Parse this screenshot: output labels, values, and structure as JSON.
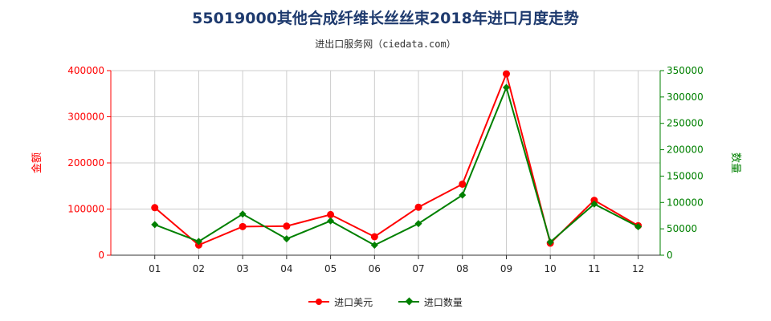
{
  "title": "55019000其他合成纤维长丝丝束2018年进口月度走势",
  "subtitle": "进出口服务网（ciedata.com）",
  "colors": {
    "left_series": "#ff0000",
    "right_series": "#008000"
  },
  "chart_data": {
    "type": "line",
    "categories": [
      "01",
      "02",
      "03",
      "04",
      "05",
      "06",
      "07",
      "08",
      "09",
      "10",
      "11",
      "12"
    ],
    "left_axis": {
      "label": "金额",
      "range": [
        0,
        400000
      ],
      "ticks": [
        0,
        100000,
        200000,
        300000,
        400000
      ],
      "tick_labels": [
        "0",
        "100000",
        "200000",
        "300000",
        "400000"
      ]
    },
    "right_axis": {
      "label": "数量",
      "range": [
        0,
        350000
      ],
      "ticks": [
        0,
        50000,
        100000,
        150000,
        200000,
        250000,
        300000,
        350000
      ],
      "tick_labels": [
        "0",
        "50000",
        "100000",
        "150000",
        "200000",
        "250000",
        "300000",
        "350000"
      ]
    },
    "grid": true,
    "legend_position": "bottom",
    "series": [
      {
        "name": "进口美元",
        "axis": "left",
        "marker": "circle",
        "values": [
          103000,
          22000,
          62000,
          63000,
          88000,
          40000,
          104000,
          154000,
          393000,
          26000,
          119000,
          64000
        ]
      },
      {
        "name": "进口数量",
        "axis": "right",
        "marker": "diamond",
        "values": [
          58000,
          26000,
          78000,
          31000,
          65000,
          19000,
          60000,
          114000,
          318000,
          25000,
          97000,
          54000
        ]
      }
    ]
  }
}
